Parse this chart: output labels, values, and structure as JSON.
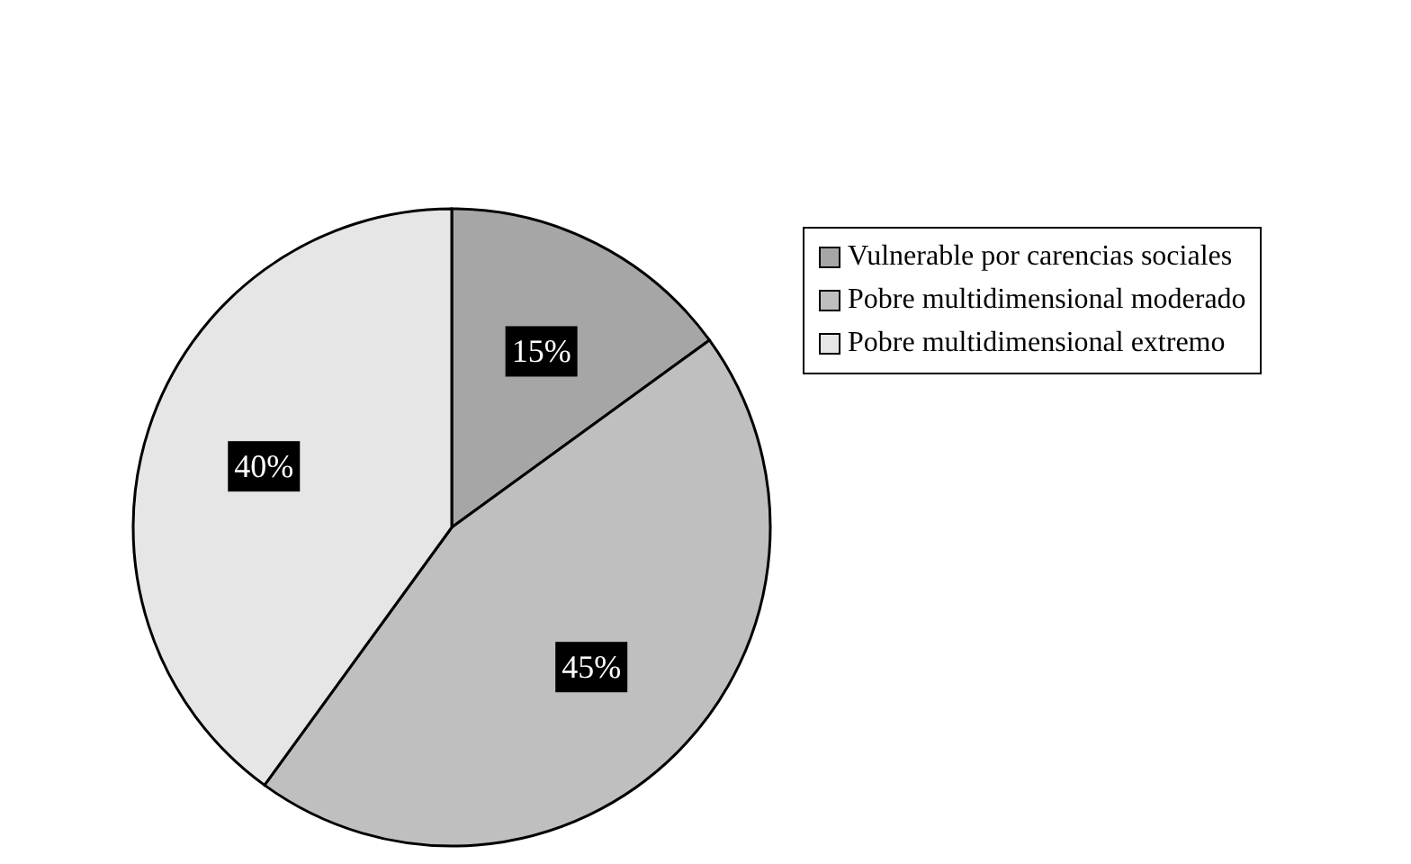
{
  "chart_data": {
    "type": "pie",
    "categories": [
      "Vulnerable por carencias sociales",
      "Pobre multidimensional moderado",
      "Pobre multidimensional extremo"
    ],
    "values": [
      15,
      45,
      40
    ],
    "colors": [
      "#a6a6a6",
      "#bfbfbf",
      "#e6e6e6"
    ],
    "value_labels": [
      "15%",
      "45%",
      "40%"
    ],
    "legend": "right"
  }
}
